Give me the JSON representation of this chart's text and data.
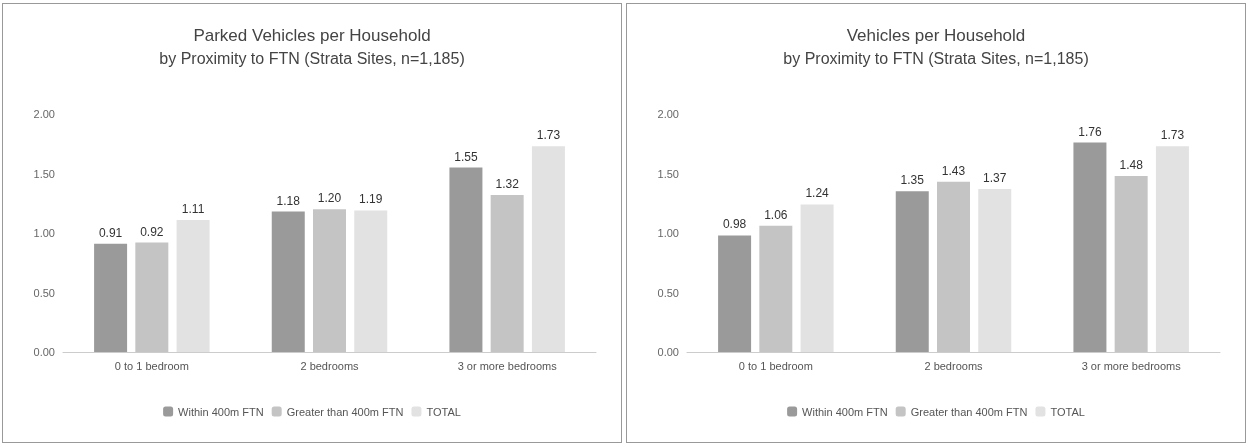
{
  "chart_data": [
    {
      "type": "bar",
      "title": "Parked Vehicles per Household",
      "subtitle": "by Proximity to FTN (Strata Sites, n=1,185)",
      "categories": [
        "0 to 1 bedroom",
        "2 bedrooms",
        "3 or more bedrooms"
      ],
      "series": [
        {
          "name": "Within 400m FTN",
          "color": "#9a9a9a",
          "values": [
            0.91,
            1.18,
            1.55
          ],
          "value_labels": [
            "0.91",
            "1.18",
            "1.55"
          ]
        },
        {
          "name": "Greater than 400m FTN",
          "color": "#c4c4c4",
          "values": [
            0.92,
            1.2,
            1.32
          ],
          "value_labels": [
            "0.92",
            "1.20",
            "1.32"
          ]
        },
        {
          "name": "TOTAL",
          "color": "#e2e2e2",
          "values": [
            1.11,
            1.19,
            1.73
          ],
          "value_labels": [
            "1.11",
            "1.19",
            "1.73"
          ]
        }
      ],
      "ylim": [
        0,
        2
      ],
      "yticks": [
        {
          "value": 0,
          "label": "0.00"
        },
        {
          "value": 0.5,
          "label": "0.50"
        },
        {
          "value": 1,
          "label": "1.00"
        },
        {
          "value": 1.5,
          "label": "1.50"
        },
        {
          "value": 2,
          "label": "2.00"
        }
      ],
      "grid": false,
      "legend": "bottom"
    },
    {
      "type": "bar",
      "title": "Vehicles per Household",
      "subtitle": "by Proximity to FTN (Strata Sites, n=1,185)",
      "categories": [
        "0 to 1 bedroom",
        "2 bedrooms",
        "3 or more bedrooms"
      ],
      "series": [
        {
          "name": "Within 400m FTN",
          "color": "#9a9a9a",
          "values": [
            0.98,
            1.35,
            1.76
          ],
          "value_labels": [
            "0.98",
            "1.35",
            "1.76"
          ]
        },
        {
          "name": "Greater than 400m FTN",
          "color": "#c4c4c4",
          "values": [
            1.06,
            1.43,
            1.48
          ],
          "value_labels": [
            "1.06",
            "1.43",
            "1.48"
          ]
        },
        {
          "name": "TOTAL",
          "color": "#e2e2e2",
          "values": [
            1.24,
            1.37,
            1.73
          ],
          "value_labels": [
            "1.24",
            "1.37",
            "1.73"
          ]
        }
      ],
      "ylim": [
        0,
        2
      ],
      "yticks": [
        {
          "value": 0,
          "label": "0.00"
        },
        {
          "value": 0.5,
          "label": "0.50"
        },
        {
          "value": 1,
          "label": "1.00"
        },
        {
          "value": 1.5,
          "label": "1.50"
        },
        {
          "value": 2,
          "label": "2.00"
        }
      ],
      "grid": false,
      "legend": "bottom"
    }
  ]
}
